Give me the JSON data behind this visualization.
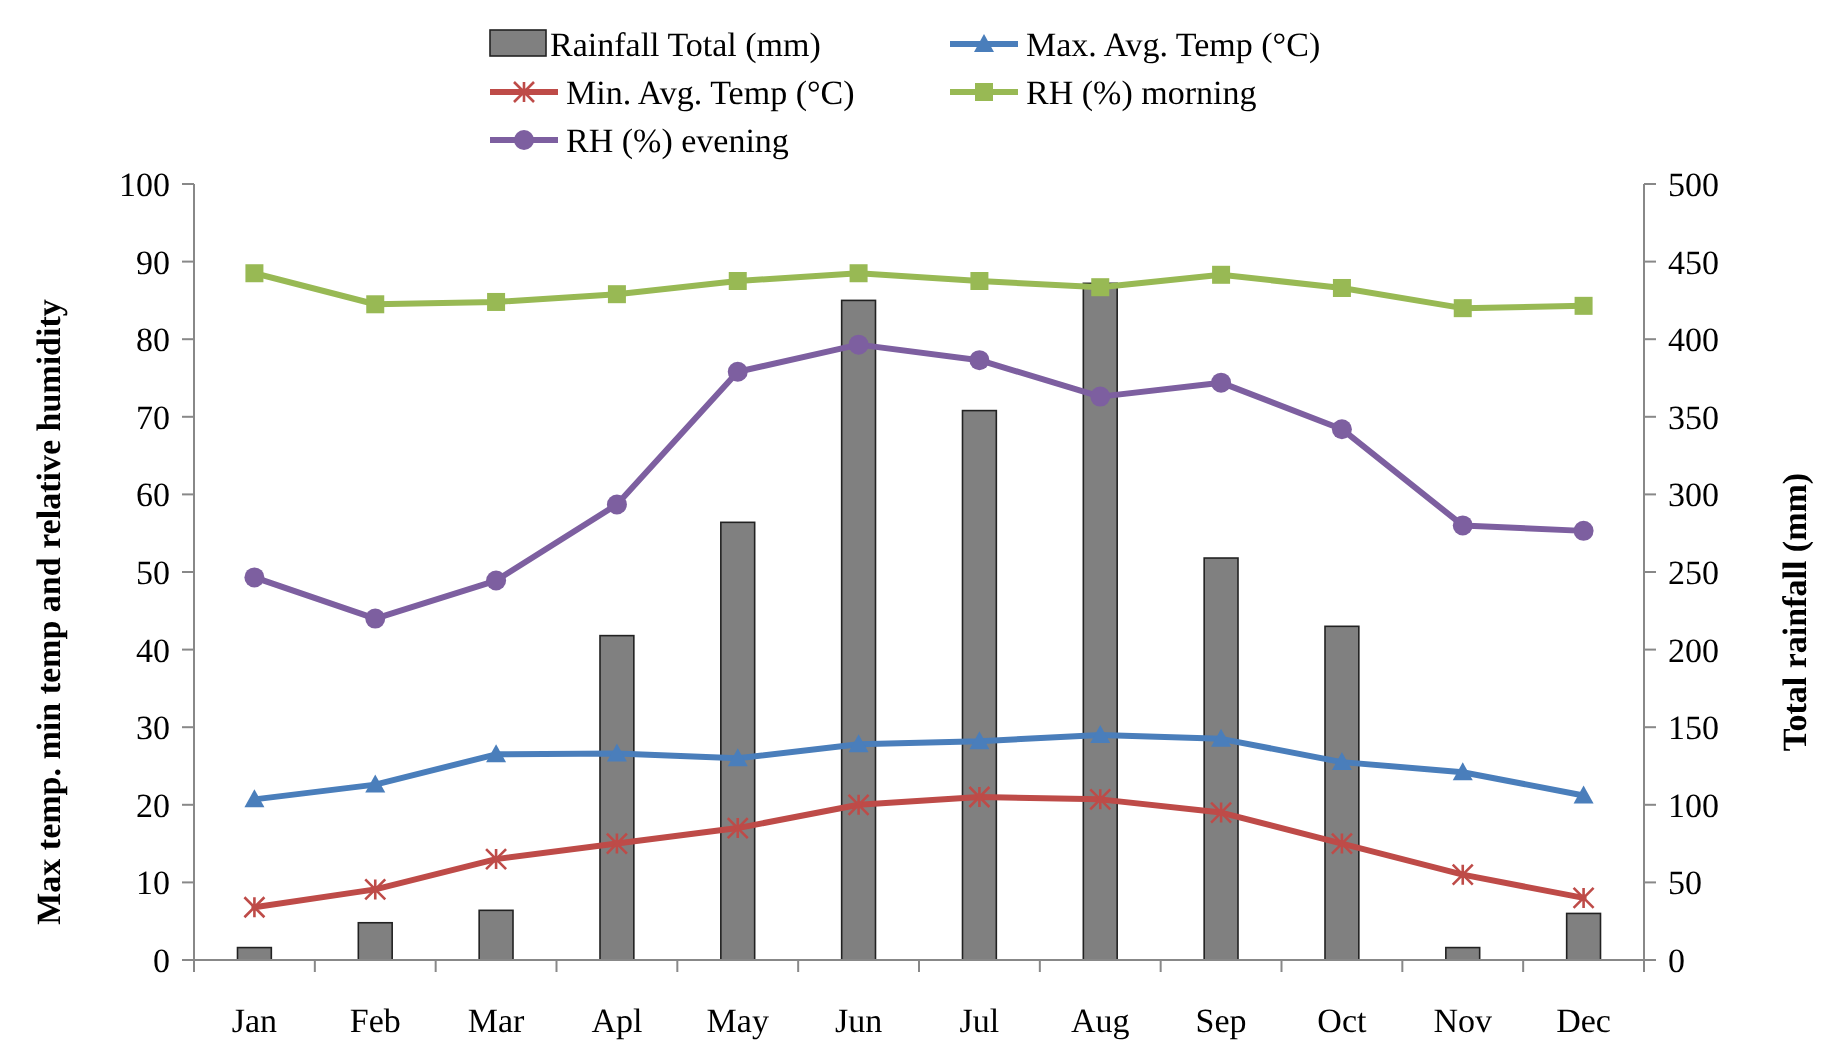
{
  "chart_data": {
    "type": "line",
    "categories": [
      "Jan",
      "Feb",
      "Mar",
      "Apl",
      "May",
      "Jun",
      "Jul",
      "Aug",
      "Sep",
      "Oct",
      "Nov",
      "Dec"
    ],
    "ylabel": "Max temp. min temp and relative humidity",
    "y2label": "Total rainfall (mm)",
    "ylim": [
      0,
      100
    ],
    "yticks": [
      0,
      10,
      20,
      30,
      40,
      50,
      60,
      70,
      80,
      90,
      100
    ],
    "y2lim": [
      0,
      500
    ],
    "y2ticks": [
      0,
      50,
      100,
      150,
      200,
      250,
      300,
      350,
      400,
      450,
      500
    ],
    "legend": "top",
    "series": [
      {
        "name": "Rainfall Total (mm)",
        "type": "bar",
        "axis": "y2",
        "color": "#808080",
        "values": [
          8,
          24,
          32,
          209,
          282,
          425,
          354,
          436,
          259,
          215,
          8,
          30
        ]
      },
      {
        "name": "Max. Avg. Temp (°C)",
        "marker": "triangle",
        "color": "#4a7ebb",
        "values": [
          20.7,
          22.6,
          26.5,
          26.6,
          26.0,
          27.8,
          28.2,
          29.0,
          28.5,
          25.5,
          24.2,
          21.2
        ]
      },
      {
        "name": "Min. Avg. Temp (°C)",
        "marker": "cross",
        "color": "#be4b48",
        "values": [
          6.8,
          9.1,
          13.0,
          15.0,
          17.0,
          20.0,
          21.0,
          20.7,
          19.0,
          15.0,
          11.0,
          8.0
        ]
      },
      {
        "name": "RH (%) morning",
        "marker": "square",
        "color": "#98b954",
        "values": [
          88.5,
          84.5,
          84.8,
          85.8,
          87.5,
          88.5,
          87.5,
          86.7,
          88.3,
          86.6,
          84.0,
          84.3
        ]
      },
      {
        "name": "RH (%) evening",
        "marker": "circle",
        "color": "#7d5fa0",
        "values": [
          49.3,
          44.0,
          48.9,
          58.7,
          75.8,
          79.3,
          77.3,
          72.6,
          74.4,
          68.4,
          56.0,
          55.3
        ]
      }
    ]
  }
}
